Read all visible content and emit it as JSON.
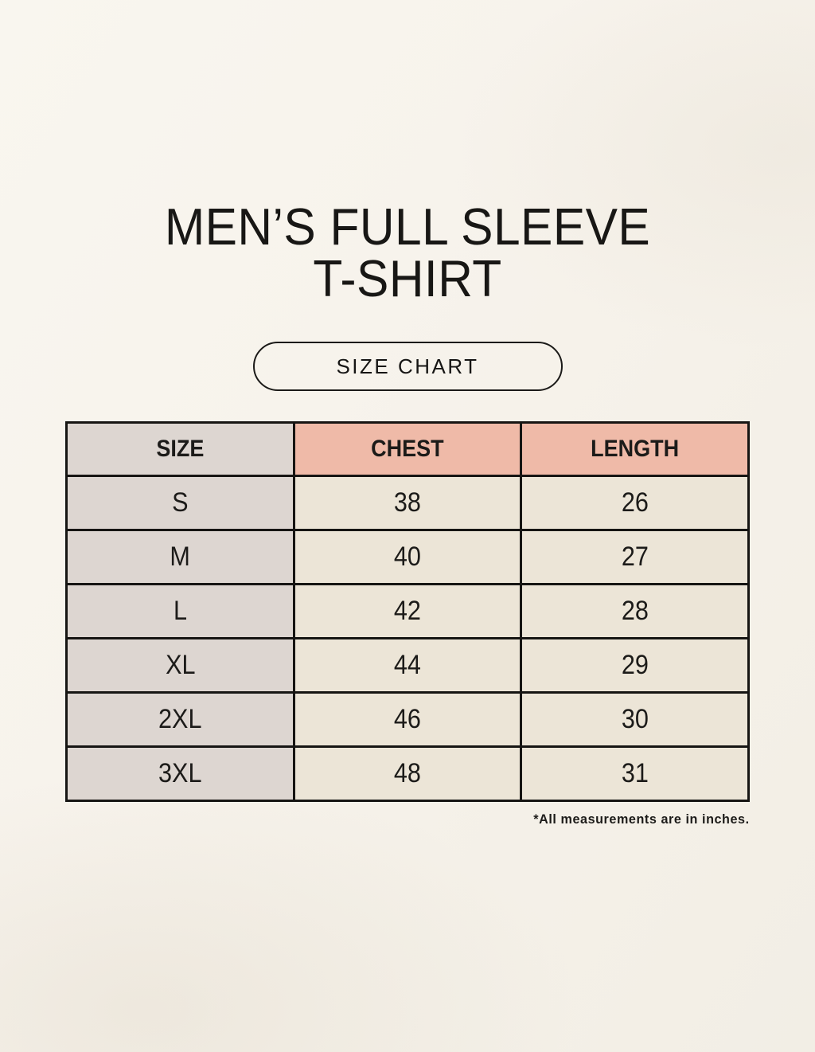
{
  "page": {
    "title_line1": "MEN’S FULL SLEEVE",
    "title_line2": "T-SHIRT",
    "badge_label": "SIZE CHART",
    "footnote": "*All measurements are in inches."
  },
  "chart_data": {
    "type": "table",
    "title": "SIZE CHART",
    "columns": [
      "SIZE",
      "CHEST",
      "LENGTH"
    ],
    "rows": [
      [
        "S",
        "38",
        "26"
      ],
      [
        "M",
        "40",
        "27"
      ],
      [
        "L",
        "42",
        "28"
      ],
      [
        "XL",
        "44",
        "29"
      ],
      [
        "2XL",
        "46",
        "30"
      ],
      [
        "3XL",
        "48",
        "31"
      ]
    ],
    "units_note": "*All measurements are in inches."
  },
  "colors": {
    "background_cream": "#f7f3ec",
    "header_pink": "#efbaa8",
    "size_column_gray": "#ddd6d1",
    "value_cell_cream": "#ece5d7",
    "border_black": "#161513",
    "text_black": "#1c1b19"
  }
}
